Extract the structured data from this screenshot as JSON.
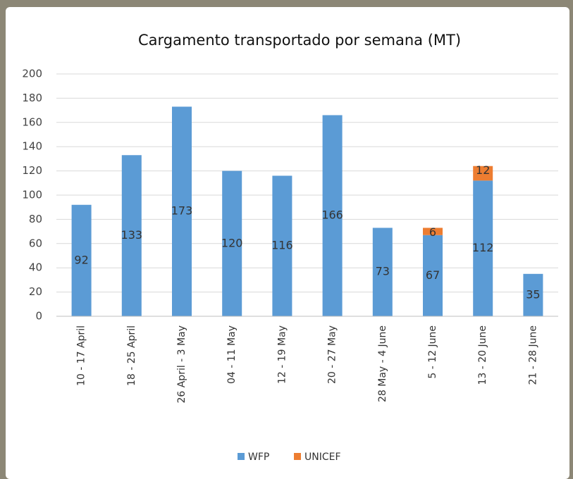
{
  "chart_data": {
    "type": "stacked-bar",
    "title": "Cargamento transportado por semana (MT)",
    "categories": [
      "10 - 17 April",
      "18 - 25 April",
      "26 April - 3 May",
      "04 - 11 May",
      "12 - 19 May",
      "20 - 27 May",
      "28 May - 4 June",
      "5 - 12 June",
      "13 - 20 June",
      "21 - 28 June"
    ],
    "series": [
      {
        "name": "WFP",
        "color": "#5b9bd5",
        "values": [
          92,
          133,
          173,
          120,
          116,
          166,
          73,
          67,
          112,
          35
        ]
      },
      {
        "name": "UNICEF",
        "color": "#ed7d31",
        "values": [
          null,
          null,
          null,
          null,
          null,
          null,
          null,
          6,
          12,
          null
        ]
      }
    ],
    "ylim": [
      0,
      200
    ],
    "yticks": [
      0,
      20,
      40,
      60,
      80,
      100,
      120,
      140,
      160,
      180,
      200
    ],
    "grid": true,
    "legend": "bottom"
  }
}
